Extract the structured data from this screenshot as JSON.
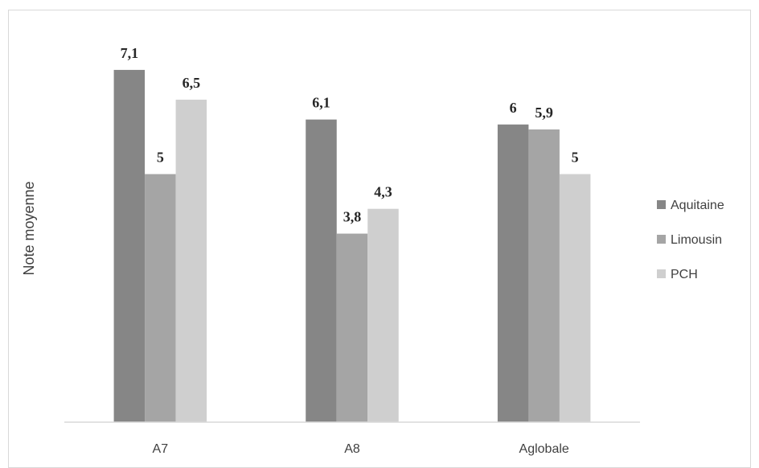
{
  "chart_data": {
    "type": "bar",
    "title": "",
    "xlabel": "",
    "ylabel": "Note moyenne",
    "categories": [
      "A7",
      "A8",
      "Aglobale"
    ],
    "series": [
      {
        "name": "Aquitaine",
        "values": [
          7.1,
          6.1,
          6
        ],
        "labels": [
          "7,1",
          "6,1",
          "6"
        ],
        "color": "#868686"
      },
      {
        "name": "Limousin",
        "values": [
          5,
          3.8,
          5.9
        ],
        "labels": [
          "5",
          "3,8",
          "5,9"
        ],
        "color": "#a5a5a5"
      },
      {
        "name": "PCH",
        "values": [
          6.5,
          4.3,
          5
        ],
        "labels": [
          "6,5",
          "4,3",
          "5"
        ],
        "color": "#cfcfcf"
      }
    ],
    "ylim": [
      0,
      8
    ],
    "grid": false,
    "legend": "right"
  }
}
